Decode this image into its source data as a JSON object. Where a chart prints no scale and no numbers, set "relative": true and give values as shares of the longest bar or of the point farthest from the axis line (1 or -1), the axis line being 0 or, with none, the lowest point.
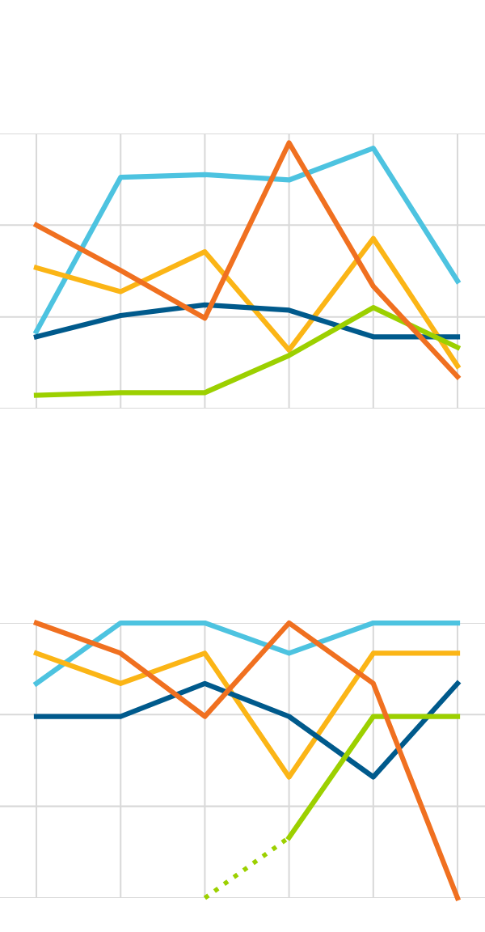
{
  "chart_data": [
    {
      "type": "line",
      "relative": true,
      "grid": true,
      "marker": "none",
      "line_style": "solid",
      "categories": [
        null,
        null,
        null,
        null,
        null,
        null
      ],
      "series": [
        {
          "color": "#4dc3e0",
          "values": [
            0.29,
            0.87,
            0.88,
            0.86,
            0.98,
            0.48
          ]
        },
        {
          "color": "#fbb516",
          "values": [
            0.53,
            0.44,
            0.59,
            0.22,
            0.64,
            0.16
          ]
        },
        {
          "color": "#005a8c",
          "values": [
            0.27,
            0.35,
            0.39,
            0.37,
            0.27,
            0.27
          ]
        },
        {
          "color": "#9cd000",
          "values": [
            0.05,
            0.06,
            0.06,
            0.2,
            0.38,
            0.23
          ]
        },
        {
          "color": "#f07020",
          "values": [
            0.69,
            0.52,
            0.34,
            1,
            0.46,
            0.12
          ]
        }
      ]
    },
    {
      "type": "line",
      "relative": true,
      "grid": true,
      "marker": "none",
      "line_style": "solid",
      "categories": [
        null,
        null,
        null,
        null,
        null,
        null
      ],
      "series": [
        {
          "color": "#4dc3e0",
          "values": [
            0.78,
            1,
            1,
            0.89,
            1,
            1
          ]
        },
        {
          "color": "#fbb516",
          "values": [
            0.89,
            0.78,
            0.89,
            0.44,
            0.89,
            0.89
          ]
        },
        {
          "color": "#005a8c",
          "values": [
            0.66,
            0.66,
            0.78,
            0.66,
            0.44,
            0.78
          ]
        },
        {
          "color": "#9cd000",
          "values": [
            null,
            null,
            null,
            0.22,
            0.66,
            0.66
          ]
        },
        {
          "color": "#9cd000",
          "line_style": "dotted",
          "values": [
            null,
            null,
            0,
            0.22,
            null,
            null
          ]
        },
        {
          "color": "#f07020",
          "values": [
            1,
            0.89,
            0.66,
            1,
            0.78,
            0
          ]
        }
      ]
    }
  ]
}
